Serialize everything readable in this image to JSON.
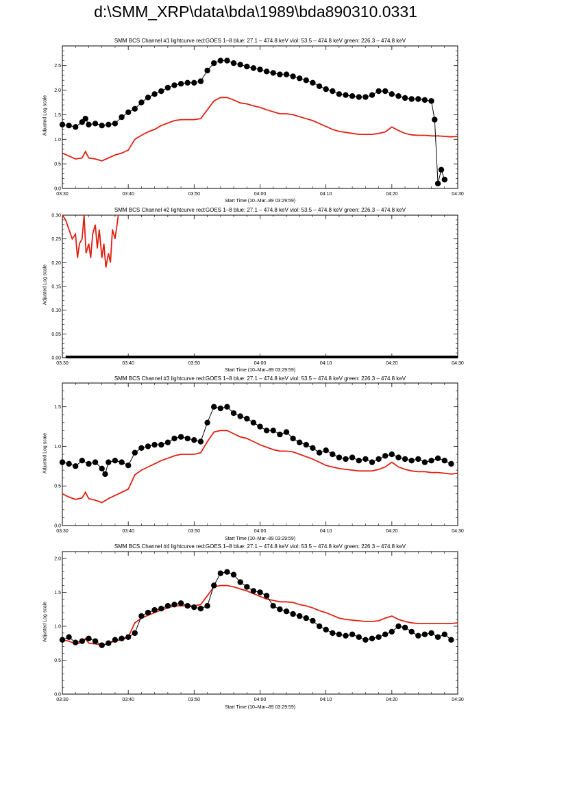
{
  "page": {
    "title": "d:\\SMM_XRP\\data\\bda\\1989\\bda890310.0331"
  },
  "chart_data": [
    {
      "type": "line",
      "title": "SMM BCS Channel #1 lightcurve  red:GOES 1–8  blue: 27.1 – 474.8 keV  viol: 53.5 – 474.8 keV  green: 226.3 – 474.8 keV",
      "xlabel": "Start Time (10–Mar–89 03:29:59)",
      "ylabel": "Adjusted Log scale",
      "x_ticks": [
        "03:30",
        "03:40",
        "03:50",
        "04:00",
        "04:10",
        "04:20",
        "04:30"
      ],
      "y_ticks": [
        "0.0",
        "0.5",
        "1.0",
        "1.5",
        "2.0",
        "2.5"
      ],
      "xlim": [
        0,
        60
      ],
      "ylim": [
        0,
        2.9
      ],
      "series": [
        {
          "color": "#e02010",
          "style": "line",
          "x": [
            0,
            1,
            2,
            3,
            3.5,
            4,
            5,
            6,
            7,
            8,
            9,
            10,
            11,
            12,
            13,
            14,
            15,
            16,
            17,
            18,
            19,
            20,
            21,
            22,
            23,
            24,
            25,
            26,
            27,
            28,
            29,
            30,
            31,
            32,
            33,
            34,
            35,
            36,
            37,
            38,
            39,
            40,
            41,
            42,
            43,
            44,
            45,
            46,
            47,
            48,
            49,
            50,
            51,
            52,
            53,
            54,
            55,
            56,
            57,
            58,
            59,
            60
          ],
          "y": [
            0.72,
            0.66,
            0.6,
            0.62,
            0.75,
            0.62,
            0.6,
            0.56,
            0.62,
            0.68,
            0.72,
            0.78,
            1.0,
            1.08,
            1.15,
            1.2,
            1.28,
            1.33,
            1.38,
            1.4,
            1.4,
            1.4,
            1.42,
            1.6,
            1.78,
            1.85,
            1.85,
            1.8,
            1.74,
            1.72,
            1.68,
            1.65,
            1.6,
            1.56,
            1.52,
            1.52,
            1.5,
            1.46,
            1.42,
            1.38,
            1.32,
            1.26,
            1.2,
            1.16,
            1.14,
            1.12,
            1.1,
            1.1,
            1.1,
            1.12,
            1.15,
            1.25,
            1.18,
            1.12,
            1.09,
            1.08,
            1.08,
            1.07,
            1.07,
            1.06,
            1.05,
            1.06
          ]
        },
        {
          "color": "#000000",
          "style": "markers",
          "x": [
            0,
            1,
            2,
            3,
            3.5,
            4,
            5,
            6,
            7,
            8,
            9,
            10,
            11,
            12,
            13,
            14,
            15,
            16,
            17,
            18,
            19,
            20,
            21,
            22,
            23,
            24,
            25,
            26,
            27,
            28,
            29,
            30,
            31,
            32,
            33,
            34,
            35,
            36,
            37,
            38,
            39,
            40,
            41,
            42,
            43,
            44,
            45,
            46,
            47,
            48,
            49,
            50,
            51,
            52,
            53,
            54,
            55,
            56,
            56.5,
            57,
            57.5,
            58
          ],
          "y": [
            1.3,
            1.28,
            1.25,
            1.35,
            1.42,
            1.3,
            1.32,
            1.28,
            1.3,
            1.32,
            1.45,
            1.55,
            1.62,
            1.75,
            1.85,
            1.92,
            1.98,
            2.05,
            2.1,
            2.13,
            2.15,
            2.15,
            2.18,
            2.4,
            2.55,
            2.6,
            2.6,
            2.55,
            2.52,
            2.48,
            2.45,
            2.42,
            2.38,
            2.35,
            2.32,
            2.32,
            2.28,
            2.24,
            2.2,
            2.15,
            2.08,
            2.02,
            1.98,
            1.92,
            1.9,
            1.88,
            1.86,
            1.86,
            1.9,
            1.98,
            1.98,
            1.92,
            1.88,
            1.84,
            1.82,
            1.82,
            1.8,
            1.78,
            1.4,
            0.1,
            0.38,
            0.18
          ]
        }
      ]
    },
    {
      "type": "line",
      "title": "SMM BCS Channel #2 lightcurve  red:GOES 1–8  blue: 27.1 – 474.8 keV  viol: 53.5 – 474.8 keV  green: 226.3 – 474.8 keV",
      "xlabel": "Start Time (10–Mar–89 03:29:59)",
      "ylabel": "Adjusted Log scale",
      "x_ticks": [
        "03:30",
        "03:40",
        "03:50",
        "04:00",
        "04:10",
        "04:20",
        "04:30"
      ],
      "y_ticks": [
        "0.00",
        "0.05",
        "0.10",
        "0.15",
        "0.20",
        "0.25",
        "0.30"
      ],
      "xlim": [
        0,
        60
      ],
      "ylim": [
        0,
        0.3
      ],
      "series": [
        {
          "color": "#e02010",
          "style": "line",
          "x": [
            0,
            0.5,
            1,
            1.5,
            2,
            2.3,
            2.6,
            3,
            3.3,
            3.6,
            4,
            4.3,
            4.6,
            5,
            5.3,
            5.6,
            6,
            6.3,
            6.6,
            7,
            7.3,
            7.6,
            8,
            8.3,
            8.5
          ],
          "y": [
            0.3,
            0.29,
            0.27,
            0.25,
            0.26,
            0.21,
            0.24,
            0.25,
            0.3,
            0.22,
            0.24,
            0.21,
            0.26,
            0.28,
            0.23,
            0.27,
            0.21,
            0.24,
            0.19,
            0.22,
            0.2,
            0.27,
            0.25,
            0.28,
            0.3
          ]
        },
        {
          "color": "#000000",
          "style": "markers",
          "x": [
            0.5,
            60
          ],
          "y": [
            0.0,
            0.0
          ]
        }
      ]
    },
    {
      "type": "line",
      "title": "SMM BCS Channel #3 lightcurve  red:GOES 1–8  blue: 27.1 – 474.8 keV  viol: 53.5 – 474.8 keV  green: 226.3 – 474.8 keV",
      "xlabel": "Start Time (10–Mar–89 03:29:59)",
      "ylabel": "Adjusted Log scale",
      "x_ticks": [
        "03:30",
        "03:40",
        "03:50",
        "04:00",
        "04:10",
        "04:20",
        "04:30"
      ],
      "y_ticks": [
        "0.0",
        "0.5",
        "1.0",
        "1.5"
      ],
      "xlim": [
        0,
        60
      ],
      "ylim": [
        0,
        1.8
      ],
      "series": [
        {
          "color": "#e02010",
          "style": "line",
          "x": [
            0,
            1,
            2,
            3,
            3.5,
            4,
            5,
            6,
            7,
            8,
            9,
            10,
            11,
            12,
            13,
            14,
            15,
            16,
            17,
            18,
            19,
            20,
            21,
            22,
            23,
            24,
            25,
            26,
            27,
            28,
            29,
            30,
            31,
            32,
            33,
            34,
            35,
            36,
            37,
            38,
            39,
            40,
            41,
            42,
            43,
            44,
            45,
            46,
            47,
            48,
            49,
            50,
            51,
            52,
            53,
            54,
            55,
            56,
            57,
            58,
            59,
            60
          ],
          "y": [
            0.4,
            0.36,
            0.33,
            0.35,
            0.42,
            0.34,
            0.32,
            0.29,
            0.34,
            0.38,
            0.42,
            0.46,
            0.64,
            0.7,
            0.74,
            0.78,
            0.82,
            0.85,
            0.88,
            0.9,
            0.9,
            0.9,
            0.92,
            1.06,
            1.18,
            1.2,
            1.2,
            1.16,
            1.12,
            1.1,
            1.06,
            1.02,
            0.99,
            0.96,
            0.94,
            0.94,
            0.93,
            0.9,
            0.87,
            0.84,
            0.8,
            0.76,
            0.74,
            0.72,
            0.71,
            0.7,
            0.69,
            0.69,
            0.69,
            0.71,
            0.74,
            0.8,
            0.74,
            0.71,
            0.69,
            0.68,
            0.68,
            0.67,
            0.67,
            0.66,
            0.65,
            0.66
          ]
        },
        {
          "color": "#000000",
          "style": "markers",
          "x": [
            0,
            1,
            2,
            3,
            4,
            5,
            6,
            6.5,
            7,
            8,
            9,
            10,
            11,
            12,
            13,
            14,
            15,
            16,
            17,
            18,
            19,
            20,
            21,
            22,
            23,
            24,
            25,
            26,
            27,
            28,
            29,
            30,
            31,
            32,
            33,
            34,
            35,
            36,
            37,
            38,
            39,
            40,
            41,
            42,
            43,
            44,
            45,
            46,
            47,
            48,
            49,
            50,
            51,
            52,
            53,
            54,
            55,
            56,
            57,
            58,
            59
          ],
          "y": [
            0.8,
            0.78,
            0.75,
            0.82,
            0.78,
            0.8,
            0.72,
            0.65,
            0.8,
            0.82,
            0.8,
            0.76,
            0.92,
            0.98,
            1.0,
            1.02,
            1.02,
            1.05,
            1.1,
            1.12,
            1.1,
            1.08,
            1.06,
            1.3,
            1.5,
            1.48,
            1.5,
            1.42,
            1.38,
            1.35,
            1.3,
            1.25,
            1.2,
            1.2,
            1.15,
            1.18,
            1.1,
            1.05,
            1.02,
            0.98,
            0.92,
            0.95,
            0.9,
            0.86,
            0.84,
            0.86,
            0.82,
            0.84,
            0.8,
            0.84,
            0.88,
            0.9,
            0.86,
            0.84,
            0.82,
            0.84,
            0.8,
            0.82,
            0.85,
            0.82,
            0.78
          ]
        }
      ]
    },
    {
      "type": "line",
      "title": "SMM BCS Channel #4 lightcurve  red:GOES 1–8  blue: 27.1 – 474.8 keV  viol: 53.5 – 474.8 keV  green: 226.3 – 474.8 keV",
      "xlabel": "Start Time (10–Mar–89 03:29:59)",
      "ylabel": "Adjusted Log scale",
      "x_ticks": [
        "03:30",
        "03:40",
        "03:50",
        "04:00",
        "04:10",
        "04:20",
        "04:30"
      ],
      "y_ticks": [
        "0.0",
        "0.5",
        "1.0",
        "1.5",
        "2.0"
      ],
      "xlim": [
        0,
        60
      ],
      "ylim": [
        0,
        2.1
      ],
      "series": [
        {
          "color": "#e02010",
          "style": "line",
          "x": [
            0,
            1,
            2,
            3,
            3.5,
            4,
            5,
            6,
            7,
            8,
            9,
            10,
            11,
            12,
            13,
            14,
            15,
            16,
            17,
            18,
            19,
            20,
            21,
            22,
            23,
            24,
            25,
            26,
            27,
            28,
            29,
            30,
            31,
            32,
            33,
            34,
            35,
            36,
            37,
            38,
            39,
            40,
            41,
            42,
            43,
            44,
            45,
            46,
            47,
            48,
            49,
            50,
            51,
            52,
            53,
            54,
            55,
            56,
            57,
            58,
            59,
            60
          ],
          "y": [
            0.8,
            0.78,
            0.74,
            0.76,
            0.82,
            0.75,
            0.74,
            0.72,
            0.75,
            0.78,
            0.8,
            0.84,
            1.05,
            1.12,
            1.16,
            1.2,
            1.24,
            1.27,
            1.3,
            1.3,
            1.3,
            1.3,
            1.32,
            1.45,
            1.58,
            1.6,
            1.6,
            1.58,
            1.55,
            1.52,
            1.48,
            1.44,
            1.4,
            1.38,
            1.36,
            1.36,
            1.35,
            1.32,
            1.3,
            1.27,
            1.23,
            1.2,
            1.16,
            1.12,
            1.1,
            1.09,
            1.08,
            1.07,
            1.07,
            1.08,
            1.12,
            1.15,
            1.1,
            1.07,
            1.05,
            1.04,
            1.04,
            1.04,
            1.04,
            1.04,
            1.04,
            1.05
          ]
        },
        {
          "color": "#000000",
          "style": "markers",
          "x": [
            0,
            1,
            2,
            3,
            4,
            5,
            6,
            7,
            8,
            9,
            10,
            11,
            12,
            13,
            14,
            15,
            16,
            17,
            18,
            19,
            20,
            21,
            22,
            23,
            24,
            25,
            26,
            27,
            28,
            29,
            30,
            31,
            32,
            33,
            34,
            35,
            36,
            37,
            38,
            39,
            40,
            41,
            42,
            43,
            44,
            45,
            46,
            47,
            48,
            49,
            50,
            51,
            52,
            53,
            54,
            55,
            56,
            57,
            58,
            59
          ],
          "y": [
            0.8,
            0.84,
            0.76,
            0.78,
            0.82,
            0.78,
            0.72,
            0.75,
            0.8,
            0.82,
            0.84,
            0.9,
            1.15,
            1.2,
            1.24,
            1.26,
            1.3,
            1.32,
            1.34,
            1.3,
            1.28,
            1.26,
            1.3,
            1.6,
            1.78,
            1.8,
            1.76,
            1.65,
            1.58,
            1.52,
            1.5,
            1.45,
            1.3,
            1.25,
            1.22,
            1.18,
            1.15,
            1.12,
            1.08,
            1.0,
            0.95,
            0.9,
            0.88,
            0.86,
            0.88,
            0.84,
            0.8,
            0.82,
            0.84,
            0.88,
            0.92,
            1.0,
            0.98,
            0.92,
            0.86,
            0.88,
            0.9,
            0.84,
            0.88,
            0.8
          ]
        }
      ]
    }
  ]
}
